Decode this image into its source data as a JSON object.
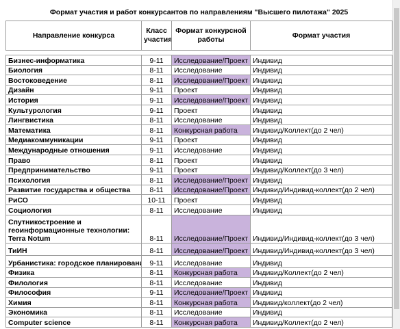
{
  "title": "Формат участия и  работ конкурсантов по направлениям \"Высшего пилотажа\" 2025",
  "headers": {
    "direction": "Направление конкурса",
    "grade": "Класс участия",
    "work_format": "Формат конкурсной работы",
    "participation": "Формат участия"
  },
  "colors": {
    "highlight": "#c9b3dc",
    "grid": "#9a9a9a"
  },
  "rows": [
    {
      "direction": "Бизнес-информатика",
      "grade": "9-11",
      "work": "Исследование/Проект",
      "participation": "Индивид",
      "highlight": true
    },
    {
      "direction": "Биология",
      "grade": "8-11",
      "work": "Исследование",
      "participation": "Индивид",
      "highlight": false
    },
    {
      "direction": "Востоковедение",
      "grade": "8-11",
      "work": "Исследование/Проект",
      "participation": "Индивид",
      "highlight": true
    },
    {
      "direction": "Дизайн",
      "grade": "9-11",
      "work": "Проект",
      "participation": "Индивид",
      "highlight": false
    },
    {
      "direction": "История",
      "grade": "9-11",
      "work": "Исследование/Проект",
      "participation": "Индивид",
      "highlight": true
    },
    {
      "direction": "Культурология",
      "grade": "9-11",
      "work": "Проект",
      "participation": "Индивид",
      "highlight": false
    },
    {
      "direction": "Лингвистика",
      "grade": "8-11",
      "work": "Исследование",
      "participation": "Индивид",
      "highlight": false
    },
    {
      "direction": "Математика",
      "grade": "8-11",
      "work": "Конкурсная работа",
      "participation": "Индивид/Коллект(до 2 чел)",
      "highlight": true
    },
    {
      "direction": "Медиакоммуникации",
      "grade": "9-11",
      "work": "Проект",
      "participation": "Индивид",
      "highlight": false
    },
    {
      "direction": "Международные отношения",
      "grade": "9-11",
      "work": "Исследование",
      "participation": "Индивид",
      "highlight": false
    },
    {
      "direction": "Право",
      "grade": "8-11",
      "work": "Проект",
      "participation": "Индивид",
      "highlight": false
    },
    {
      "direction": "Предпринимательство",
      "grade": "9-11",
      "work": "Проект",
      "participation": "Индивид/Коллект(до 3 чел)",
      "highlight": false
    },
    {
      "direction": "Психология",
      "grade": "8-11",
      "work": "Исследование/Проект",
      "participation": "Индивид",
      "highlight": true
    },
    {
      "direction": "Развитие государства и общества",
      "grade": "8-11",
      "work": "Исследование/Проект",
      "participation": "Индивид/Индивид-коллект(до 2 чел)",
      "highlight": true
    },
    {
      "direction": "РиСО",
      "grade": "10-11",
      "work": "Проект",
      "participation": "Индивид",
      "highlight": false
    },
    {
      "direction": "Социология",
      "grade": "8-11",
      "work": "Исследование",
      "participation": "Индивид",
      "highlight": false
    }
  ],
  "multi_row": {
    "line1": "Спутникостроение и",
    "line2": "геоинформационные технологии:",
    "line3": "Terra Notum",
    "grade": "8-11",
    "work": "Исследование/Проект",
    "participation": "Индивид/Индивид-коллект(до 3 чел)",
    "highlight": true
  },
  "rows2": [
    {
      "direction": "ТиИН",
      "grade": "8-11",
      "work": "Исследование/Проект",
      "participation": "Индивид/Индивид-коллект(до 3 чел)",
      "highlight": true
    },
    {
      "direction": "Урбанистика: городское планирование",
      "grade": "9-11",
      "work": "Исследование",
      "participation": "Индивид",
      "highlight": false
    },
    {
      "direction": "Физика",
      "grade": "8-11",
      "work": "Конкурсная работа",
      "participation": "Индивид/Коллект(до 2 чел)",
      "highlight": true
    },
    {
      "direction": "Филология",
      "grade": "8-11",
      "work": "Исследование",
      "participation": "Индивид",
      "highlight": false
    },
    {
      "direction": "Философия",
      "grade": "9-11",
      "work": "Исследование/Проект",
      "participation": "Индивид",
      "highlight": true
    },
    {
      "direction": "Химия",
      "grade": "8-11",
      "work": "Конкурсная работа",
      "participation": "Индивид/коллект(до 2 чел)",
      "highlight": true
    },
    {
      "direction": "Экономика",
      "grade": "8-11",
      "work": "Исследование",
      "participation": "Индивид",
      "highlight": false
    },
    {
      "direction": "Computer science",
      "grade": "8-11",
      "work": "Конкурсная работа",
      "participation": "Индивид/Коллект(до 2 чел)",
      "highlight": true
    }
  ]
}
